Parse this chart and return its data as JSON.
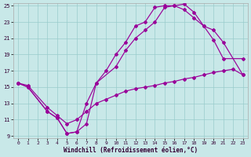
{
  "bg_color": "#c8e8e8",
  "line_color": "#990099",
  "grid_color": "#99cccc",
  "xlabel": "Windchill (Refroidissement éolien,°C)",
  "xlim": [
    0,
    23
  ],
  "ylim": [
    9,
    25
  ],
  "xticks": [
    0,
    1,
    2,
    3,
    4,
    5,
    6,
    7,
    8,
    9,
    10,
    11,
    12,
    13,
    14,
    15,
    16,
    17,
    18,
    19,
    20,
    21,
    22,
    23
  ],
  "yticks": [
    9,
    11,
    13,
    15,
    17,
    19,
    21,
    23,
    25
  ],
  "line1_x": [
    0,
    1,
    3,
    4,
    5,
    6,
    7,
    8,
    9,
    10,
    11,
    12,
    13,
    14,
    15,
    16,
    17,
    18,
    19,
    20,
    21,
    23
  ],
  "line1_y": [
    15.5,
    15.0,
    12.0,
    11.2,
    9.3,
    9.5,
    10.5,
    15.5,
    17.0,
    19.0,
    20.5,
    22.5,
    23.0,
    24.8,
    25.0,
    25.0,
    24.5,
    23.5,
    22.5,
    20.8,
    18.5,
    18.5
  ],
  "line2_x": [
    0,
    1,
    3,
    4,
    5,
    6,
    7,
    8,
    10,
    11,
    12,
    13,
    14,
    15,
    16,
    17,
    18,
    19,
    20,
    21,
    23
  ],
  "line2_y": [
    15.5,
    15.0,
    12.0,
    11.2,
    9.3,
    9.5,
    13.0,
    15.5,
    17.5,
    19.5,
    21.0,
    22.0,
    23.0,
    24.8,
    25.0,
    25.2,
    24.2,
    22.5,
    22.0,
    20.5,
    16.5
  ],
  "line3_x": [
    0,
    1,
    3,
    4,
    5,
    6,
    7,
    8,
    9,
    10,
    11,
    12,
    13,
    14,
    15,
    16,
    17,
    18,
    19,
    20,
    21,
    22,
    23
  ],
  "line3_y": [
    15.5,
    15.2,
    12.5,
    11.5,
    10.5,
    11.0,
    12.0,
    13.0,
    13.5,
    14.0,
    14.5,
    14.8,
    15.0,
    15.2,
    15.5,
    15.7,
    16.0,
    16.2,
    16.5,
    16.8,
    17.0,
    17.2,
    16.5
  ]
}
